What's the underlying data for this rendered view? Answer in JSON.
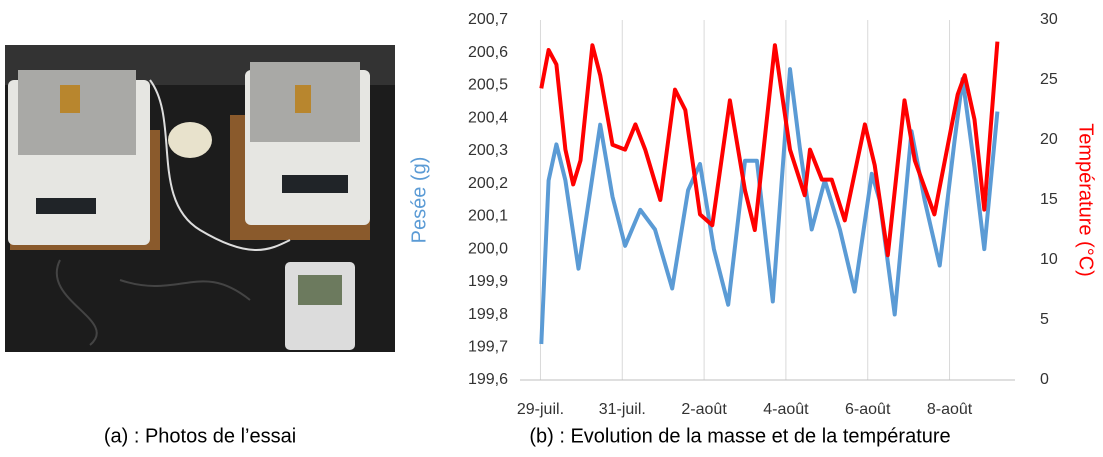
{
  "photo": {
    "caption": "(a) : Photos de l’essai"
  },
  "chart_data": {
    "type": "line",
    "caption": "(b) : Evolution de la masse et de la température",
    "ylabel": "Pesée (g)",
    "y2label": "Température (°C)",
    "xlim": [
      -0.5,
      11.6
    ],
    "xticks": [
      {
        "value": 0,
        "label": "29-juil."
      },
      {
        "value": 2,
        "label": "31-juil."
      },
      {
        "value": 4,
        "label": "2-août"
      },
      {
        "value": 6,
        "label": "4-août"
      },
      {
        "value": 8,
        "label": "6-août"
      },
      {
        "value": 10,
        "label": "8-août"
      }
    ],
    "xgrid": true,
    "ylim": [
      199.6,
      200.7
    ],
    "yticks": [
      {
        "value": 199.6,
        "label": "199,6"
      },
      {
        "value": 199.7,
        "label": "199,7"
      },
      {
        "value": 199.8,
        "label": "199,8"
      },
      {
        "value": 199.9,
        "label": "199,9"
      },
      {
        "value": 200.0,
        "label": "200,0"
      },
      {
        "value": 200.1,
        "label": "200,1"
      },
      {
        "value": 200.2,
        "label": "200,2"
      },
      {
        "value": 200.3,
        "label": "200,3"
      },
      {
        "value": 200.4,
        "label": "200,4"
      },
      {
        "value": 200.5,
        "label": "200,5"
      },
      {
        "value": 200.6,
        "label": "200,6"
      },
      {
        "value": 200.7,
        "label": "200,7"
      }
    ],
    "y2lim": [
      0,
      30
    ],
    "y2ticks": [
      0,
      5,
      10,
      15,
      20,
      25,
      30
    ],
    "series": [
      {
        "color": "#5b9bd5",
        "x": [
          0.02,
          0.2,
          0.39,
          0.61,
          0.93,
          1.22,
          1.46,
          1.76,
          2.07,
          2.44,
          2.8,
          3.22,
          3.61,
          3.9,
          4.24,
          4.59,
          5.0,
          5.29,
          5.68,
          6.1,
          6.34,
          6.63,
          6.95,
          7.32,
          7.68,
          8.1,
          8.29,
          8.66,
          9.07,
          9.39,
          9.76,
          10.12,
          10.32,
          10.61,
          10.85,
          11.17
        ],
        "values": [
          199.71,
          200.21,
          200.32,
          200.21,
          199.94,
          200.18,
          200.38,
          200.16,
          200.01,
          200.12,
          200.06,
          199.88,
          200.18,
          200.26,
          200.0,
          199.83,
          200.27,
          200.27,
          199.84,
          200.55,
          200.31,
          200.06,
          200.21,
          200.06,
          199.87,
          200.23,
          200.15,
          199.8,
          200.36,
          200.15,
          199.95,
          200.33,
          200.52,
          200.25,
          200.0,
          200.42
        ]
      },
      {
        "color": "#ff0000",
        "axis": "y2",
        "x": [
          0.02,
          0.2,
          0.39,
          0.61,
          0.8,
          0.98,
          1.27,
          1.46,
          1.76,
          2.07,
          2.32,
          2.56,
          2.93,
          3.29,
          3.54,
          3.9,
          4.2,
          4.63,
          5.0,
          5.24,
          5.73,
          6.1,
          6.46,
          6.59,
          6.88,
          7.12,
          7.44,
          7.93,
          8.17,
          8.49,
          8.9,
          9.15,
          9.63,
          10.2,
          10.37,
          10.61,
          10.85,
          11.17
        ],
        "values": [
          24.3,
          27.5,
          26.3,
          19.2,
          16.3,
          18.3,
          27.9,
          25.4,
          19.6,
          19.2,
          21.3,
          19.2,
          15.0,
          24.2,
          22.5,
          13.8,
          12.9,
          23.3,
          15.8,
          12.5,
          27.9,
          19.2,
          15.4,
          19.2,
          16.7,
          16.7,
          13.3,
          21.3,
          17.9,
          10.4,
          23.3,
          18.3,
          13.8,
          23.8,
          25.4,
          21.7,
          14.2,
          28.2
        ]
      }
    ]
  }
}
